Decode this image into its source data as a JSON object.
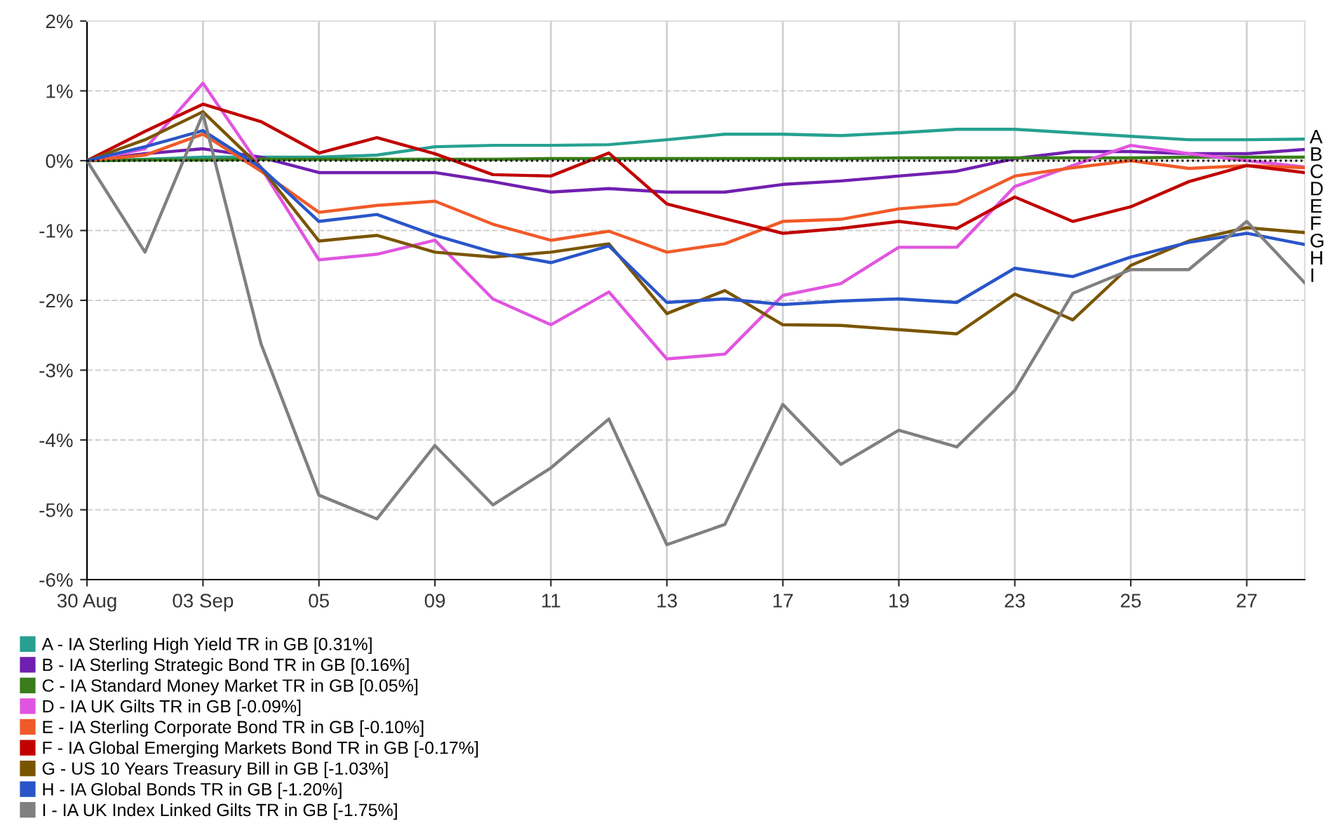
{
  "chart_data": {
    "type": "line",
    "categories": [
      "30 Aug",
      null,
      "03 Sep",
      null,
      "05",
      null,
      "09",
      null,
      "11",
      null,
      "13",
      null,
      "17",
      null,
      "19",
      null,
      "23",
      null,
      "25",
      null,
      "27",
      null
    ],
    "ylim": [
      -6,
      2
    ],
    "yticks": [
      {
        "value": -6,
        "label": "-6%"
      },
      {
        "value": -5,
        "label": "-5%"
      },
      {
        "value": -4,
        "label": "-4%"
      },
      {
        "value": -3,
        "label": "-3%"
      },
      {
        "value": -2,
        "label": "-2%"
      },
      {
        "value": -1,
        "label": "-1%"
      },
      {
        "value": 0,
        "label": "0%"
      },
      {
        "value": 1,
        "label": "1%"
      },
      {
        "value": 2,
        "label": "2%"
      }
    ],
    "grid": true,
    "legend": "bottom left",
    "marker": "none",
    "line_style": "solid",
    "ref_lines": [
      {
        "axis": "y",
        "value": 0,
        "color": "#000000",
        "line_style": "dotted"
      }
    ],
    "series": [
      {
        "name": "A - IA Sterling High Yield TR in GB [0.31%]",
        "color": "#26a190",
        "values": [
          0,
          0.02,
          0.05,
          0.05,
          0.05,
          0.08,
          0.2,
          0.22,
          0.22,
          0.23,
          0.3,
          0.38,
          0.38,
          0.36,
          0.4,
          0.45,
          0.45,
          0.4,
          0.35,
          0.3,
          0.3,
          0.31
        ]
      },
      {
        "name": "B - IA Sterling Strategic Bond TR in GB [0.16%]",
        "color": "#7020b0",
        "values": [
          0,
          0.1,
          0.17,
          0.05,
          -0.17,
          -0.17,
          -0.17,
          -0.3,
          -0.45,
          -0.4,
          -0.45,
          -0.45,
          -0.34,
          -0.29,
          -0.22,
          -0.15,
          0.03,
          0.13,
          0.13,
          0.1,
          0.1,
          0.16
        ]
      },
      {
        "name": "C - IA Standard Money Market TR in GB [0.05%]",
        "color": "#3a7d1a",
        "values": [
          0,
          0.01,
          0.01,
          0.02,
          0.02,
          0.02,
          0.02,
          0.02,
          0.03,
          0.03,
          0.03,
          0.03,
          0.03,
          0.03,
          0.04,
          0.04,
          0.04,
          0.04,
          0.04,
          0.05,
          0.05,
          0.05
        ]
      },
      {
        "name": "D - IA UK Gilts TR in GB [-0.09%]",
        "color": "#e055e0",
        "values": [
          0,
          0.17,
          1.11,
          -0.1,
          -1.42,
          -1.34,
          -1.14,
          -1.98,
          -2.35,
          -1.88,
          -2.84,
          -2.77,
          -1.93,
          -1.76,
          -1.24,
          -1.24,
          -0.37,
          -0.07,
          0.22,
          0.1,
          0,
          -0.09
        ]
      },
      {
        "name": "E - IA Sterling Corporate Bond TR in GB [-0.10%]",
        "color": "#f05a28",
        "values": [
          0,
          0.08,
          0.38,
          -0.15,
          -0.74,
          -0.64,
          -0.58,
          -0.91,
          -1.14,
          -1.01,
          -1.31,
          -1.19,
          -0.87,
          -0.84,
          -0.69,
          -0.62,
          -0.22,
          -0.1,
          0,
          -0.11,
          -0.07,
          -0.1
        ]
      },
      {
        "name": "F - IA Global Emerging Markets Bond TR in GB [-0.17%]",
        "color": "#c00000",
        "values": [
          0,
          0.42,
          0.81,
          0.56,
          0.11,
          0.33,
          0.1,
          -0.2,
          -0.22,
          0.11,
          -0.62,
          -0.83,
          -1.04,
          -0.97,
          -0.87,
          -0.97,
          -0.52,
          -0.87,
          -0.66,
          -0.3,
          -0.07,
          -0.17
        ]
      },
      {
        "name": "G - US 10 Years Treasury Bill in GB [-1.03%]",
        "color": "#7a5500",
        "values": [
          0,
          0.3,
          0.7,
          -0.1,
          -1.15,
          -1.07,
          -1.31,
          -1.38,
          -1.31,
          -1.19,
          -2.19,
          -1.86,
          -2.35,
          -2.36,
          -2.42,
          -2.48,
          -1.91,
          -2.28,
          -1.5,
          -1.15,
          -0.96,
          -1.03
        ]
      },
      {
        "name": "H - IA Global Bonds TR in GB [-1.20%]",
        "color": "#2a55c8",
        "values": [
          0,
          0.2,
          0.43,
          -0.1,
          -0.87,
          -0.77,
          -1.07,
          -1.31,
          -1.46,
          -1.22,
          -2.03,
          -1.98,
          -2.06,
          -2.01,
          -1.98,
          -2.03,
          -1.54,
          -1.66,
          -1.38,
          -1.17,
          -1.04,
          -1.2
        ]
      },
      {
        "name": "I - IA UK Index Linked Gilts TR in GB [-1.75%]",
        "color": "#808080",
        "values": [
          0,
          -1.31,
          0.67,
          -2.62,
          -4.79,
          -5.13,
          -4.08,
          -4.93,
          -4.4,
          -3.7,
          -5.5,
          -5.21,
          -3.49,
          -4.35,
          -3.86,
          -4.1,
          -3.29,
          -1.9,
          -1.56,
          -1.56,
          -0.87,
          -1.75
        ]
      }
    ],
    "annotations": [
      "A",
      "B",
      "C",
      "D",
      "E",
      "F",
      "G",
      "H",
      "I"
    ]
  }
}
